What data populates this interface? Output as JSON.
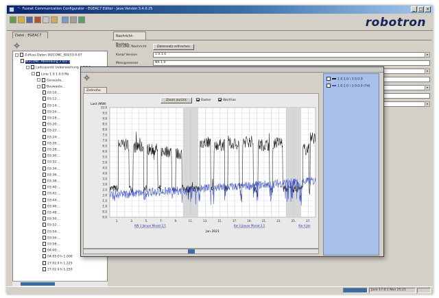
{
  "window": {
    "title": "ⁿ◦ Fusnet Communication Configurator - EGEAC7 Editor - Java Version 3.4.0.25",
    "logo": "robotron",
    "controls": {
      "minimize": "_",
      "restore": "□",
      "close": "×"
    }
  },
  "toolbar": {
    "icons": [
      "new-icon",
      "open-icon",
      "save-icon",
      "cut-icon",
      "copy-icon",
      "paste-icon",
      "find-icon",
      "print-icon",
      "help-icon"
    ]
  },
  "left_panel": {
    "tab_label": "Datei : EGEAC7",
    "tree": [
      {
        "level": 0,
        "expander": "⊟",
        "label": "Zufluss Daten W2CONC_B0233-0-07"
      },
      {
        "level": 1,
        "expander": "",
        "label": "W2CONC Absenkung 2.0/2.1",
        "selected": true
      },
      {
        "level": 2,
        "expander": "⊟",
        "label": "Laduspunkt Ueberwachung 2.0/2.1"
      },
      {
        "level": 3,
        "expander": "⊟",
        "label": "Linie 1 0 1.0.0 Rb"
      },
      {
        "level": 4,
        "expander": "⊞",
        "label": "Gerauete..."
      },
      {
        "level": 4,
        "expander": "⊟",
        "label": "Bauwaete..."
      },
      {
        "level": 5,
        "expander": "",
        "label": "03:10:..."
      },
      {
        "level": 5,
        "expander": "",
        "label": "03:12:..."
      },
      {
        "level": 5,
        "expander": "",
        "label": "03:14:..."
      },
      {
        "level": 5,
        "expander": "",
        "label": "03:16:..."
      },
      {
        "level": 5,
        "expander": "",
        "label": "03:18:..."
      },
      {
        "level": 5,
        "expander": "",
        "label": "03:20:..."
      },
      {
        "level": 5,
        "expander": "",
        "label": "03:22:..."
      },
      {
        "level": 5,
        "expander": "",
        "label": "03:24:..."
      },
      {
        "level": 5,
        "expander": "",
        "label": "03:26:..."
      },
      {
        "level": 5,
        "expander": "",
        "label": "03:28:..."
      },
      {
        "level": 5,
        "expander": "",
        "label": "03:30:..."
      },
      {
        "level": 5,
        "expander": "",
        "label": "03:32:..."
      },
      {
        "level": 5,
        "expander": "",
        "label": "03:34:..."
      },
      {
        "level": 5,
        "expander": "",
        "label": "03:36:..."
      },
      {
        "level": 5,
        "expander": "",
        "label": "03:38:..."
      },
      {
        "level": 5,
        "expander": "",
        "label": "03:40:..."
      },
      {
        "level": 5,
        "expander": "",
        "label": "03:42:..."
      },
      {
        "level": 5,
        "expander": "",
        "label": "03:44:..."
      },
      {
        "level": 5,
        "expander": "",
        "label": "03:46:..."
      },
      {
        "level": 5,
        "expander": "",
        "label": "03:48:..."
      },
      {
        "level": 5,
        "expander": "",
        "label": "03:50:..."
      },
      {
        "level": 5,
        "expander": "",
        "label": "03:52:..."
      },
      {
        "level": 5,
        "expander": "",
        "label": "03:54:..."
      },
      {
        "level": 5,
        "expander": "",
        "label": "03:56:..."
      },
      {
        "level": 5,
        "expander": "",
        "label": "03:58:..."
      },
      {
        "level": 5,
        "expander": "",
        "label": "04:00:..."
      },
      {
        "level": 5,
        "expander": "",
        "label": "04:05:0 h 1.000"
      },
      {
        "level": 5,
        "expander": "",
        "label": "27.02.0 h 1.225"
      },
      {
        "level": 5,
        "expander": "",
        "label": "27.02.0 h 1.250"
      }
    ]
  },
  "right_panel": {
    "tab_label": "Nachricht-Buchen",
    "props": [
      {
        "type": "button",
        "label": "W2CONC Nachricht",
        "value": "Datensatz erfrischen"
      },
      {
        "type": "field",
        "label": "Kanal Version",
        "value": "1.0.1.0"
      },
      {
        "type": "field",
        "label": "Messgroessen",
        "value": "NR 1.0"
      },
      {
        "type": "field",
        "label": "",
        "value": ""
      },
      {
        "type": "field",
        "label": "",
        "value": ""
      },
      {
        "type": "field",
        "label": "",
        "value": ""
      },
      {
        "type": "field",
        "label": "",
        "value": ""
      },
      {
        "type": "field",
        "label": "",
        "value": ""
      }
    ]
  },
  "chart_window": {
    "tab_label": "Zeitreihe",
    "zoom_button": "Zoom zurück",
    "checkbox_1": "Raster",
    "checkbox_2": "Werthas",
    "legend": [
      {
        "label": "1.0.1.0 \\ 3.0.0.0",
        "color": "#1a1a1a"
      },
      {
        "label": "1.0.1.0 \\ 3.0.0.0 (7d)",
        "color": "#3a4fc8"
      }
    ]
  },
  "status": {
    "segment_1": "",
    "segment_2": "Java 17.0.1 Nov 25.21"
  },
  "chart_data": {
    "type": "line",
    "title": "",
    "ylabel": "Last (MW)",
    "xlabel": "Jan 2021",
    "ylim": [
      0,
      10
    ],
    "yticks": [
      0,
      0.5,
      1.0,
      1.5,
      2.0,
      2.5,
      3.0,
      3.5,
      4.0,
      4.5,
      5.0,
      5.5,
      6.0,
      6.5,
      7.0,
      7.5,
      8.0,
      8.5,
      9.0,
      9.5,
      10.0
    ],
    "xlim": [
      0,
      28
    ],
    "xticks": [
      "1.",
      "3.",
      "5.",
      "7.",
      "9.",
      "11.",
      "13.",
      "15.",
      "17.",
      "19.",
      "21.",
      "23.",
      "25.",
      "27."
    ],
    "x_links": [
      "KW 1 Januar Monat 2,5",
      "Kw 3 Januar Monat 2,5",
      "Kw 4 Jan"
    ],
    "shaded_days": [
      [
        10,
        12
      ],
      [
        24,
        26
      ]
    ],
    "series": [
      {
        "name": "1.0.1.0 \\ 3.0.0.0",
        "color": "#111111",
        "plateau_days": [
          [
            1.2,
            2.6
          ],
          [
            3.2,
            4.6
          ],
          [
            5.1,
            6.5
          ],
          [
            7.0,
            8.4
          ],
          [
            9.0,
            9.8
          ],
          [
            12.3,
            13.7
          ],
          [
            14.2,
            15.6
          ],
          [
            16.1,
            17.6
          ],
          [
            18.1,
            19.5
          ],
          [
            20.2,
            21.7
          ],
          [
            22.2,
            23.5
          ],
          [
            26.3,
            27.1
          ],
          [
            27.3,
            28.0
          ]
        ],
        "plateau_values": [
          6.6,
          6.4,
          6.2,
          6.0,
          5.8,
          6.8,
          6.6,
          6.7,
          6.9,
          6.6,
          6.8,
          6.2,
          7.2
        ],
        "base_value": 2.6
      },
      {
        "name": "1.0.1.0 \\ 3.0.0.0 (7d)",
        "color": "#3a4fc8",
        "start_value": 2.0,
        "end_value": 3.3,
        "dip_value": 1.3
      }
    ]
  }
}
